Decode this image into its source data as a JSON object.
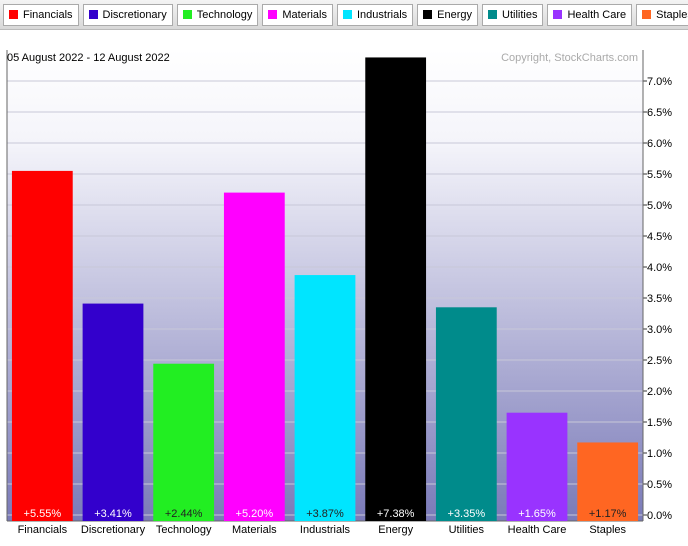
{
  "chart_data": {
    "type": "bar",
    "subtitle": "05 August 2022 - 12 August 2022",
    "annotation": "Copyright, StockCharts.com",
    "categories": [
      "Financials",
      "Discretionary",
      "Technology",
      "Materials",
      "Industrials",
      "Energy",
      "Utilities",
      "Health Care",
      "Staples"
    ],
    "values": [
      5.55,
      3.41,
      2.44,
      5.2,
      3.87,
      7.38,
      3.35,
      1.65,
      1.17
    ],
    "value_labels": [
      "+5.55%",
      "+3.41%",
      "+2.44%",
      "+5.20%",
      "+3.87%",
      "+7.38%",
      "+3.35%",
      "+1.65%",
      "+1.17%"
    ],
    "colors": [
      "#ff0000",
      "#3300cc",
      "#22ee22",
      "#ff00ff",
      "#00e5ff",
      "#000000",
      "#008b8b",
      "#9933ff",
      "#ff6622"
    ],
    "ylim": [
      0,
      7.5
    ],
    "yticks": [
      {
        "value": 0,
        "label": "0.0%"
      },
      {
        "value": 0.5,
        "label": "0.5%"
      },
      {
        "value": 1,
        "label": "1.0%"
      },
      {
        "value": 1.5,
        "label": "1.5%"
      },
      {
        "value": 2,
        "label": "2.0%"
      },
      {
        "value": 2.5,
        "label": "2.5%"
      },
      {
        "value": 3,
        "label": "3.0%"
      },
      {
        "value": 3.5,
        "label": "3.5%"
      },
      {
        "value": 4,
        "label": "4.0%"
      },
      {
        "value": 4.5,
        "label": "4.5%"
      },
      {
        "value": 5,
        "label": "5.0%"
      },
      {
        "value": 5.5,
        "label": "5.5%"
      },
      {
        "value": 6,
        "label": "6.0%"
      },
      {
        "value": 6.5,
        "label": "6.5%"
      },
      {
        "value": 7,
        "label": "7.0%"
      }
    ],
    "grid": true,
    "y_axis_side": "right"
  }
}
